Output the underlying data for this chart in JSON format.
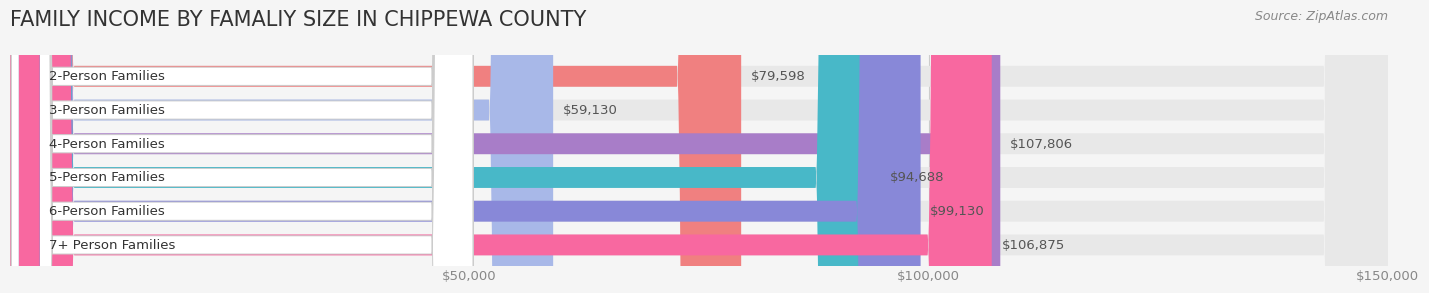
{
  "title": "FAMILY INCOME BY FAMALIY SIZE IN CHIPPEWA COUNTY",
  "source": "Source: ZipAtlas.com",
  "categories": [
    "2-Person Families",
    "3-Person Families",
    "4-Person Families",
    "5-Person Families",
    "6-Person Families",
    "7+ Person Families"
  ],
  "values": [
    79598,
    59130,
    107806,
    94688,
    99130,
    106875
  ],
  "bar_colors": [
    "#F08080",
    "#A8B8E8",
    "#A87DC8",
    "#48B8C8",
    "#8888D8",
    "#F868A0"
  ],
  "value_labels": [
    "$79,598",
    "$59,130",
    "$107,806",
    "$94,688",
    "$99,130",
    "$106,875"
  ],
  "xlim": [
    0,
    150000
  ],
  "xticks": [
    0,
    50000,
    100000,
    150000
  ],
  "xtick_labels": [
    "",
    "$50,000",
    "$100,000",
    "$150,000"
  ],
  "bg_color": "#f5f5f5",
  "bar_bg_color": "#e8e8e8",
  "title_fontsize": 15,
  "bar_height": 0.62,
  "label_fontsize": 9.5,
  "value_fontsize": 9.5,
  "source_fontsize": 9
}
